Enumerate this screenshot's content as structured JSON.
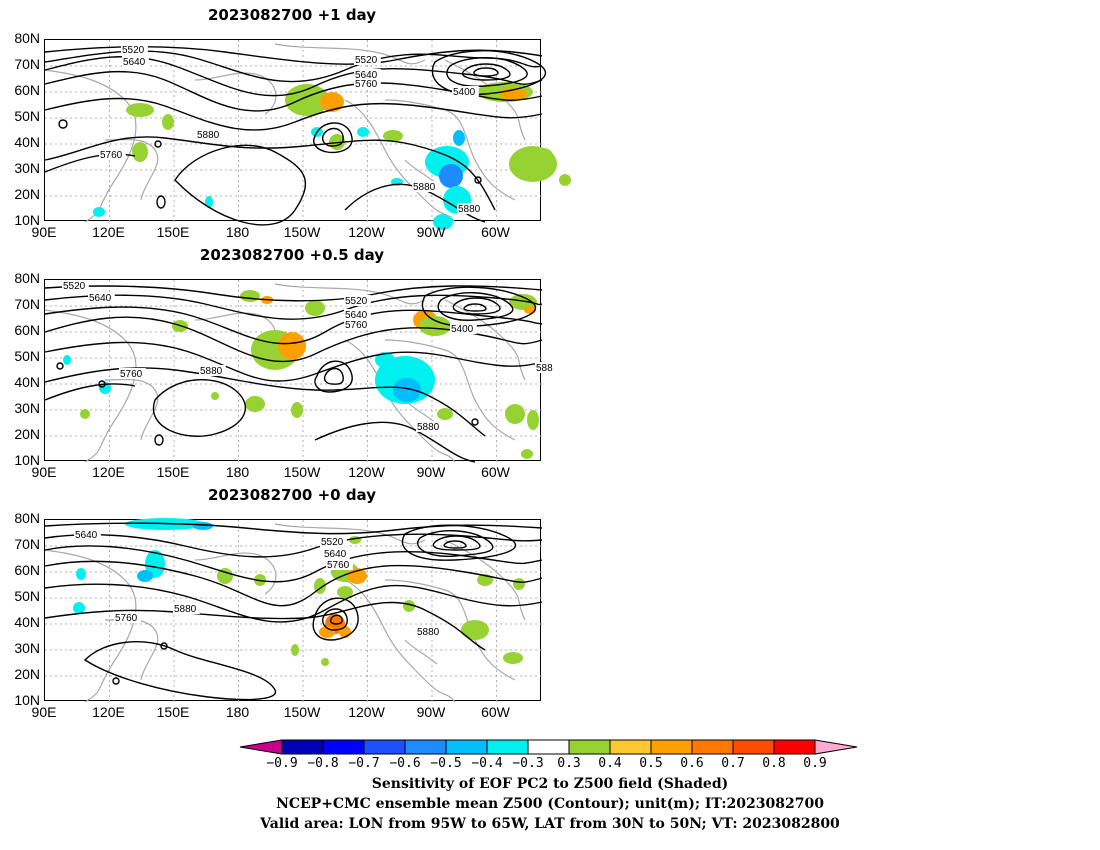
{
  "panels": [
    {
      "title": "2023082700  +1 day",
      "contour_labels": [
        "5520",
        "5640",
        "5520",
        "5640",
        "5760",
        "5400",
        "5880",
        "5760",
        "5880",
        "5880"
      ]
    },
    {
      "title": "2023082700  +0.5 day",
      "contour_labels": [
        "5520",
        "5640",
        "5520",
        "5640",
        "5760",
        "5400",
        "5760",
        "5880",
        "5880",
        "588"
      ]
    },
    {
      "title": "2023082700  +0 day",
      "contour_labels": [
        "5640",
        "5520",
        "5640",
        "5760",
        "5760",
        "5880",
        "5880"
      ]
    }
  ],
  "lat_ticks": [
    "80N",
    "70N",
    "60N",
    "50N",
    "40N",
    "30N",
    "20N",
    "10N"
  ],
  "lon_ticks": [
    "90E",
    "120E",
    "150E",
    "180",
    "150W",
    "120W",
    "90W",
    "60W"
  ],
  "colorbar": {
    "colors": [
      "#c8008c",
      "#0000b4",
      "#0000ff",
      "#1e50ff",
      "#1e8cff",
      "#00beff",
      "#00f0f0",
      "#ffffff",
      "#96d232",
      "#ffc832",
      "#ffa000",
      "#ff7800",
      "#ff4b00",
      "#ff0000",
      "#ffaad2"
    ],
    "labels": [
      "-0.9",
      "-0.8",
      "-0.7",
      "-0.6",
      "-0.5",
      "-0.4",
      "-0.3",
      "0.3",
      "0.4",
      "0.5",
      "0.6",
      "0.7",
      "0.8",
      "0.9"
    ]
  },
  "captions": [
    "Sensitivity of EOF PC2 to Z500 field (Shaded)",
    "NCEP+CMC ensemble mean Z500 (Contour); unit(m); IT:2023082700",
    "Valid area: LON from 95W to 65W, LAT from 30N to 50N; VT: 2023082800"
  ],
  "colors": {
    "contour": "#000000",
    "coastline": "#a8a8a8",
    "grid": "#b0b0b0"
  }
}
